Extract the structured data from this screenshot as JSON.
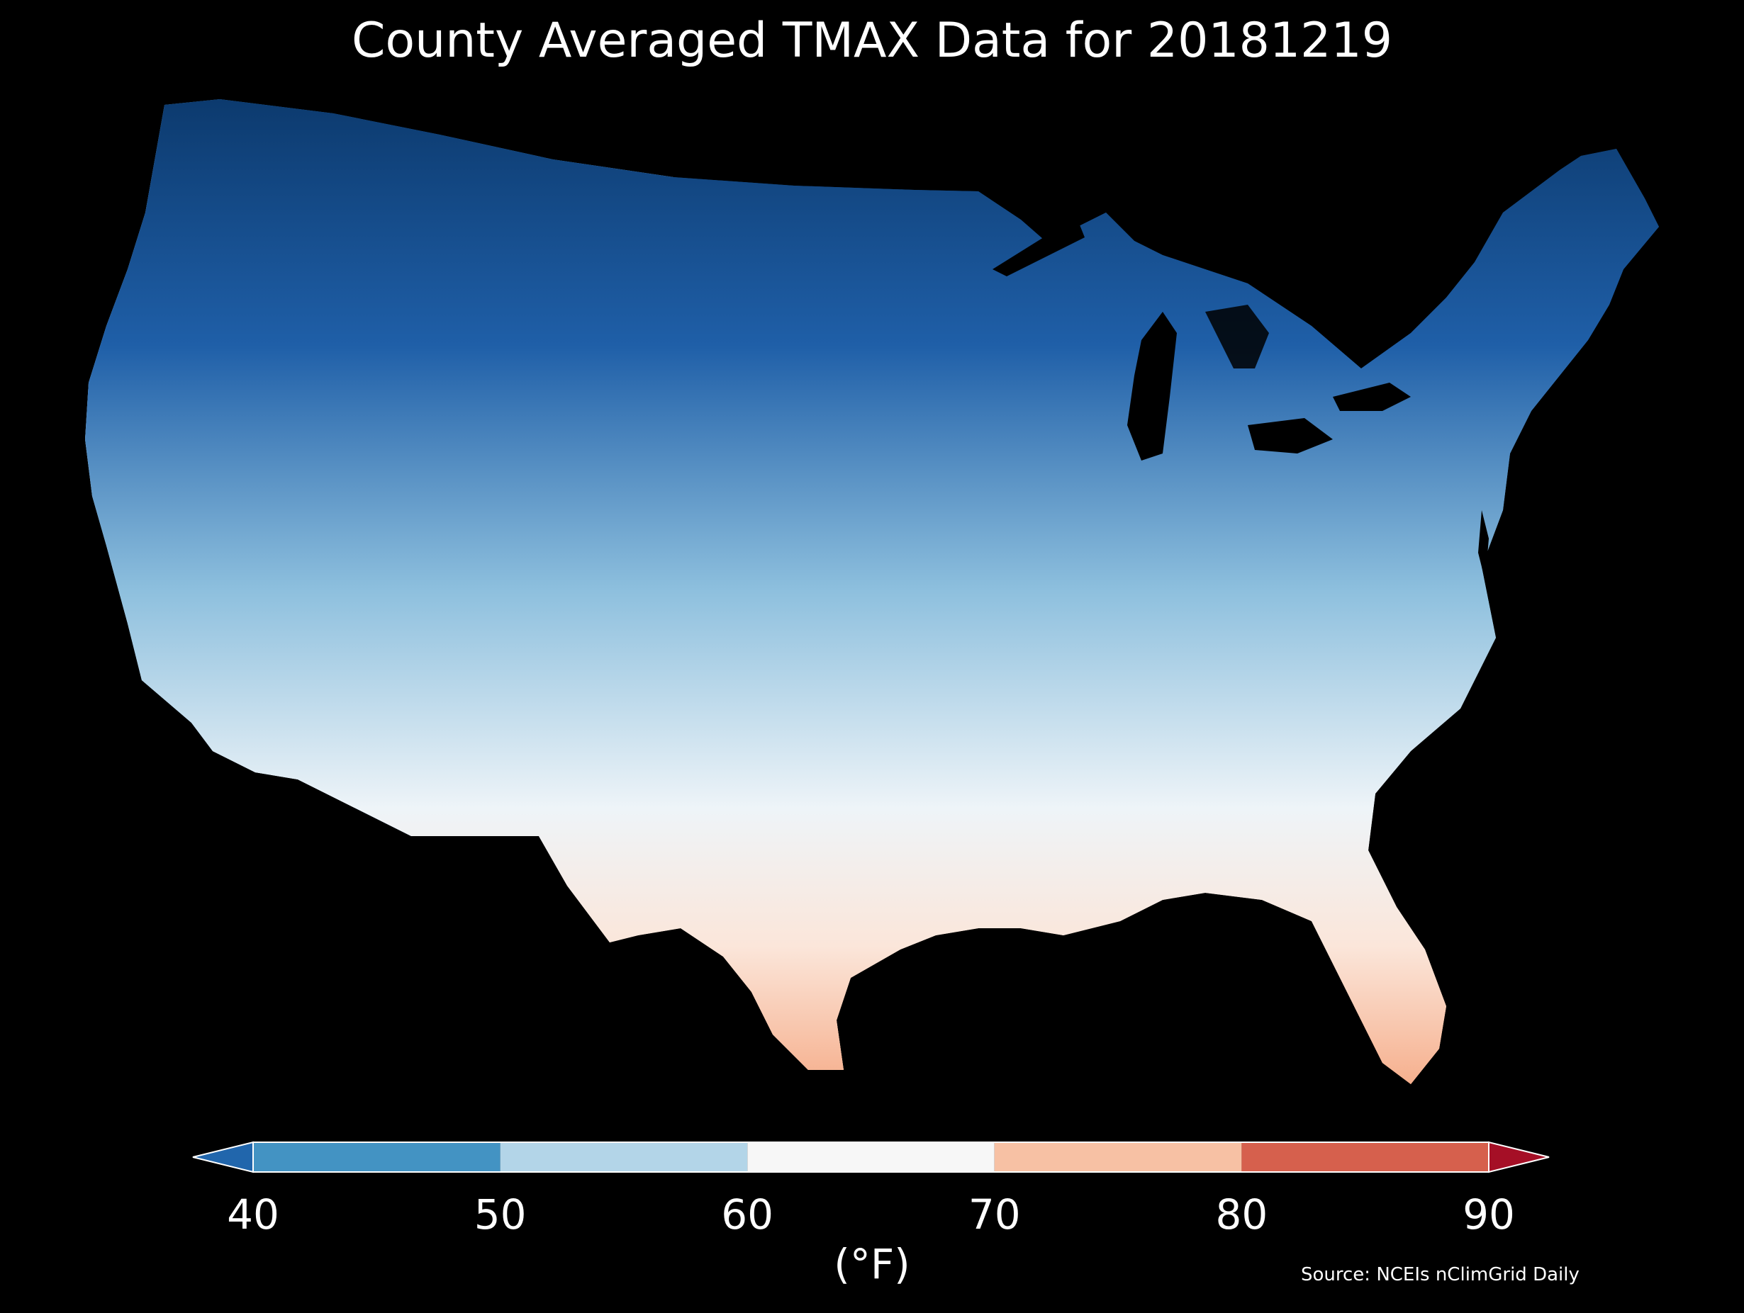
{
  "title": "County Averaged TMAX Data for 20181219",
  "colorbar": {
    "unit_label": "(°F)",
    "ticks": [
      "40",
      "50",
      "60",
      "70",
      "80",
      "90"
    ],
    "bins": [
      {
        "from": null,
        "to": 40,
        "color": "#2166ac"
      },
      {
        "from": 40,
        "to": 50,
        "color": "#4393c3"
      },
      {
        "from": 50,
        "to": 60,
        "color": "#b3d5e8"
      },
      {
        "from": 60,
        "to": 70,
        "color": "#f7f7f7"
      },
      {
        "from": 70,
        "to": 80,
        "color": "#f7c1a4"
      },
      {
        "from": 80,
        "to": 90,
        "color": "#d6604d"
      },
      {
        "from": 90,
        "to": null,
        "color": "#a50f26"
      }
    ],
    "extend": "both"
  },
  "source": "Source: NCEIs nClimGrid Daily",
  "map": {
    "region": "contiguous United States",
    "unit": "county",
    "variable": "TMAX",
    "colormap": "RdBu_r",
    "background": "#000000"
  }
}
